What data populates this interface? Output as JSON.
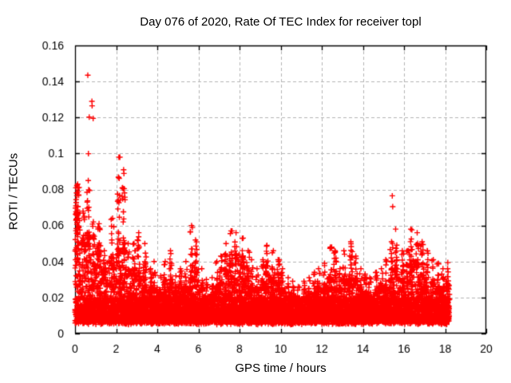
{
  "chart_data": {
    "type": "scatter",
    "title": "Day 076 of 2020, Rate Of TEC Index for receiver topl",
    "xlabel": "GPS time / hours",
    "ylabel": "ROTI / TECUs",
    "xlim": [
      0,
      20
    ],
    "ylim": [
      0,
      0.16
    ],
    "xticks": [
      0,
      2,
      4,
      6,
      8,
      10,
      12,
      14,
      16,
      18,
      20
    ],
    "xtick_labels": [
      "0",
      "2",
      "4",
      "6",
      "8",
      "10",
      "12",
      "14",
      "16",
      "18",
      "20"
    ],
    "yticks": [
      0,
      0.02,
      0.04,
      0.06,
      0.08,
      0.1,
      0.12,
      0.14,
      0.16
    ],
    "ytick_labels": [
      "0",
      "0.02",
      "0.04",
      "0.06",
      "0.08",
      "0.1",
      "0.12",
      "0.14",
      "0.16"
    ],
    "grid": true,
    "legend": "none",
    "marker": "plus",
    "marker_color": "#ff0000",
    "grid_color": "#b3b3b3",
    "axis_color": "#000000",
    "x_start": 0,
    "x_end": 18.22,
    "bin_width": 0.25,
    "baseline_low": 0.006,
    "points_per_bin": 82,
    "core_points_per_bin": 26,
    "core_band": [
      0.007,
      0.02
    ],
    "bins_note": "per 0.25h bin: [dense_band_top, spike_peak] in ROTI/TECUs, read from plot envelope",
    "bins": [
      [
        0.07,
        0.083
      ],
      [
        0.055,
        0.068
      ],
      [
        0.055,
        0.085
      ],
      [
        0.042,
        0.062
      ],
      [
        0.048,
        0.061
      ],
      [
        0.036,
        0.046
      ],
      [
        0.03,
        0.04
      ],
      [
        0.042,
        0.064
      ],
      [
        0.048,
        0.098
      ],
      [
        0.05,
        0.091
      ],
      [
        0.036,
        0.05
      ],
      [
        0.036,
        0.05
      ],
      [
        0.032,
        0.056
      ],
      [
        0.036,
        0.05
      ],
      [
        0.026,
        0.036
      ],
      [
        0.026,
        0.04
      ],
      [
        0.023,
        0.032
      ],
      [
        0.03,
        0.04
      ],
      [
        0.03,
        0.046
      ],
      [
        0.023,
        0.032
      ],
      [
        0.026,
        0.036
      ],
      [
        0.026,
        0.04
      ],
      [
        0.032,
        0.06
      ],
      [
        0.036,
        0.052
      ],
      [
        0.026,
        0.036
      ],
      [
        0.021,
        0.03
      ],
      [
        0.022,
        0.031
      ],
      [
        0.026,
        0.04
      ],
      [
        0.03,
        0.043
      ],
      [
        0.036,
        0.05
      ],
      [
        0.042,
        0.057
      ],
      [
        0.046,
        0.056
      ],
      [
        0.04,
        0.053
      ],
      [
        0.031,
        0.046
      ],
      [
        0.026,
        0.041
      ],
      [
        0.026,
        0.036
      ],
      [
        0.03,
        0.041
      ],
      [
        0.036,
        0.049
      ],
      [
        0.031,
        0.046
      ],
      [
        0.029,
        0.041
      ],
      [
        0.026,
        0.036
      ],
      [
        0.021,
        0.031
      ],
      [
        0.021,
        0.029
      ],
      [
        0.019,
        0.026
      ],
      [
        0.021,
        0.029
      ],
      [
        0.021,
        0.031
      ],
      [
        0.023,
        0.034
      ],
      [
        0.026,
        0.036
      ],
      [
        0.026,
        0.039
      ],
      [
        0.031,
        0.048
      ],
      [
        0.031,
        0.046
      ],
      [
        0.026,
        0.036
      ],
      [
        0.031,
        0.046
      ],
      [
        0.033,
        0.051
      ],
      [
        0.031,
        0.043
      ],
      [
        0.026,
        0.036
      ],
      [
        0.023,
        0.033
      ],
      [
        0.021,
        0.031
      ],
      [
        0.023,
        0.034
      ],
      [
        0.026,
        0.036
      ],
      [
        0.026,
        0.041
      ],
      [
        0.031,
        0.051
      ],
      [
        0.036,
        0.058
      ],
      [
        0.031,
        0.046
      ],
      [
        0.031,
        0.046
      ],
      [
        0.041,
        0.058
      ],
      [
        0.041,
        0.056
      ],
      [
        0.036,
        0.051
      ],
      [
        0.031,
        0.046
      ],
      [
        0.029,
        0.041
      ],
      [
        0.026,
        0.039
      ],
      [
        0.026,
        0.036
      ],
      [
        0.028,
        0.036
      ]
    ],
    "edge_cluster": {
      "x": 0.02,
      "x_spread": 0.12,
      "y_min": 0.04,
      "y_max": 0.083,
      "count": 42
    },
    "outliers": [
      [
        0.62,
        0.1435
      ],
      [
        0.69,
        0.1202
      ],
      [
        0.82,
        0.129
      ],
      [
        0.83,
        0.1265
      ],
      [
        0.88,
        0.1195
      ],
      [
        0.65,
        0.0999
      ],
      [
        15.43,
        0.0765
      ],
      [
        15.45,
        0.0705
      ],
      [
        18.13,
        0.0394
      ]
    ]
  }
}
